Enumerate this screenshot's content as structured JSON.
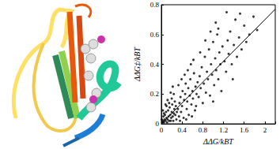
{
  "chart_data": {
    "type": "scatter",
    "xlabel": "ΔΔG/kBT",
    "ylabel": "ΔΔG‡/kBT",
    "xlim": [
      0,
      2.2
    ],
    "ylim": [
      0,
      0.8
    ],
    "xticks": [
      0,
      0.4,
      0.8,
      1.2,
      1.6,
      2
    ],
    "yticks": [
      0,
      0.2,
      0.4,
      0.6,
      0.8
    ],
    "grid": false,
    "series": [
      {
        "type": "scatter",
        "color": "#000000",
        "marker": "circle",
        "x": [
          0.02,
          0.03,
          0.05,
          0.06,
          0.08,
          0.1,
          0.12,
          0.14,
          0.15,
          0.17,
          0.19,
          0.2,
          0.22,
          0.24,
          0.25,
          0.27,
          0.28,
          0.3,
          0.04,
          0.07,
          0.09,
          0.11,
          0.13,
          0.16,
          0.18,
          0.21,
          0.23,
          0.26,
          0.29,
          0.01,
          0.05,
          0.1,
          0.15,
          0.2,
          0.24,
          0.03,
          0.08,
          0.12,
          0.18,
          0.22,
          0.32,
          0.34,
          0.35,
          0.37,
          0.38,
          0.4,
          0.41,
          0.43,
          0.44,
          0.46,
          0.47,
          0.49,
          0.5,
          0.52,
          0.53,
          0.55,
          0.56,
          0.58,
          0.6,
          0.61,
          0.63,
          0.65,
          0.66,
          0.68,
          0.7,
          0.33,
          0.39,
          0.45,
          0.51,
          0.57,
          0.62,
          0.36,
          0.48,
          0.59,
          0.67,
          0.72,
          0.74,
          0.76,
          0.78,
          0.8,
          0.82,
          0.84,
          0.86,
          0.88,
          0.9,
          0.92,
          0.94,
          0.96,
          0.98,
          1,
          1.02,
          1.04,
          1.06,
          1.08,
          1.1,
          1.12,
          1.14,
          1.16,
          1.18,
          0.75,
          0.85,
          0.95,
          1.05,
          1,
          1.1,
          1.22,
          1.25,
          1.28,
          1.3,
          1.33,
          1.36,
          1.4,
          1.43,
          1.46,
          1.5,
          1.55,
          1.6,
          1.64,
          1.7,
          1.78,
          1.85,
          1.26,
          1.38,
          1.52
        ],
        "values": [
          0.01,
          0.02,
          0.01,
          0.03,
          0.02,
          0.04,
          0.03,
          0.05,
          0.02,
          0.06,
          0.04,
          0.08,
          0.05,
          0.07,
          0.1,
          0.06,
          0.12,
          0.08,
          0.05,
          0.06,
          0.08,
          0.01,
          0.09,
          0.11,
          0.02,
          0.13,
          0.02,
          0.15,
          0.03,
          0.03,
          0.07,
          0.12,
          0.14,
          0.17,
          0.2,
          0.09,
          0.13,
          0.16,
          0.21,
          0.25,
          0.1,
          0.05,
          0.14,
          0.18,
          0.08,
          0.12,
          0.22,
          0.04,
          0.16,
          0.2,
          0.27,
          0.1,
          0.15,
          0.24,
          0.06,
          0.19,
          0.3,
          0.13,
          0.22,
          0.17,
          0.34,
          0.09,
          0.25,
          0.2,
          0.28,
          0.26,
          0.3,
          0.33,
          0.36,
          0.4,
          0.43,
          0.02,
          0.03,
          0.05,
          0.12,
          0.18,
          0.32,
          0.24,
          0.38,
          0.14,
          0.27,
          0.45,
          0.21,
          0.35,
          0.3,
          0.5,
          0.19,
          0.4,
          0.33,
          0.55,
          0.26,
          0.44,
          0.36,
          0.6,
          0.3,
          0.48,
          0.4,
          0.22,
          0.52,
          0.48,
          0.56,
          0.62,
          0.68,
          0.15,
          0.64,
          0.42,
          0.35,
          0.56,
          0.47,
          0.62,
          0.4,
          0.53,
          0.7,
          0.45,
          0.58,
          0.5,
          0.66,
          0.55,
          0.6,
          0.72,
          0.63,
          0.75,
          0.3,
          0.74
        ]
      },
      {
        "type": "line",
        "color": "#000000",
        "line_style": "solid",
        "x": [
          0,
          2.2
        ],
        "values": [
          0,
          0.77
        ]
      }
    ]
  }
}
